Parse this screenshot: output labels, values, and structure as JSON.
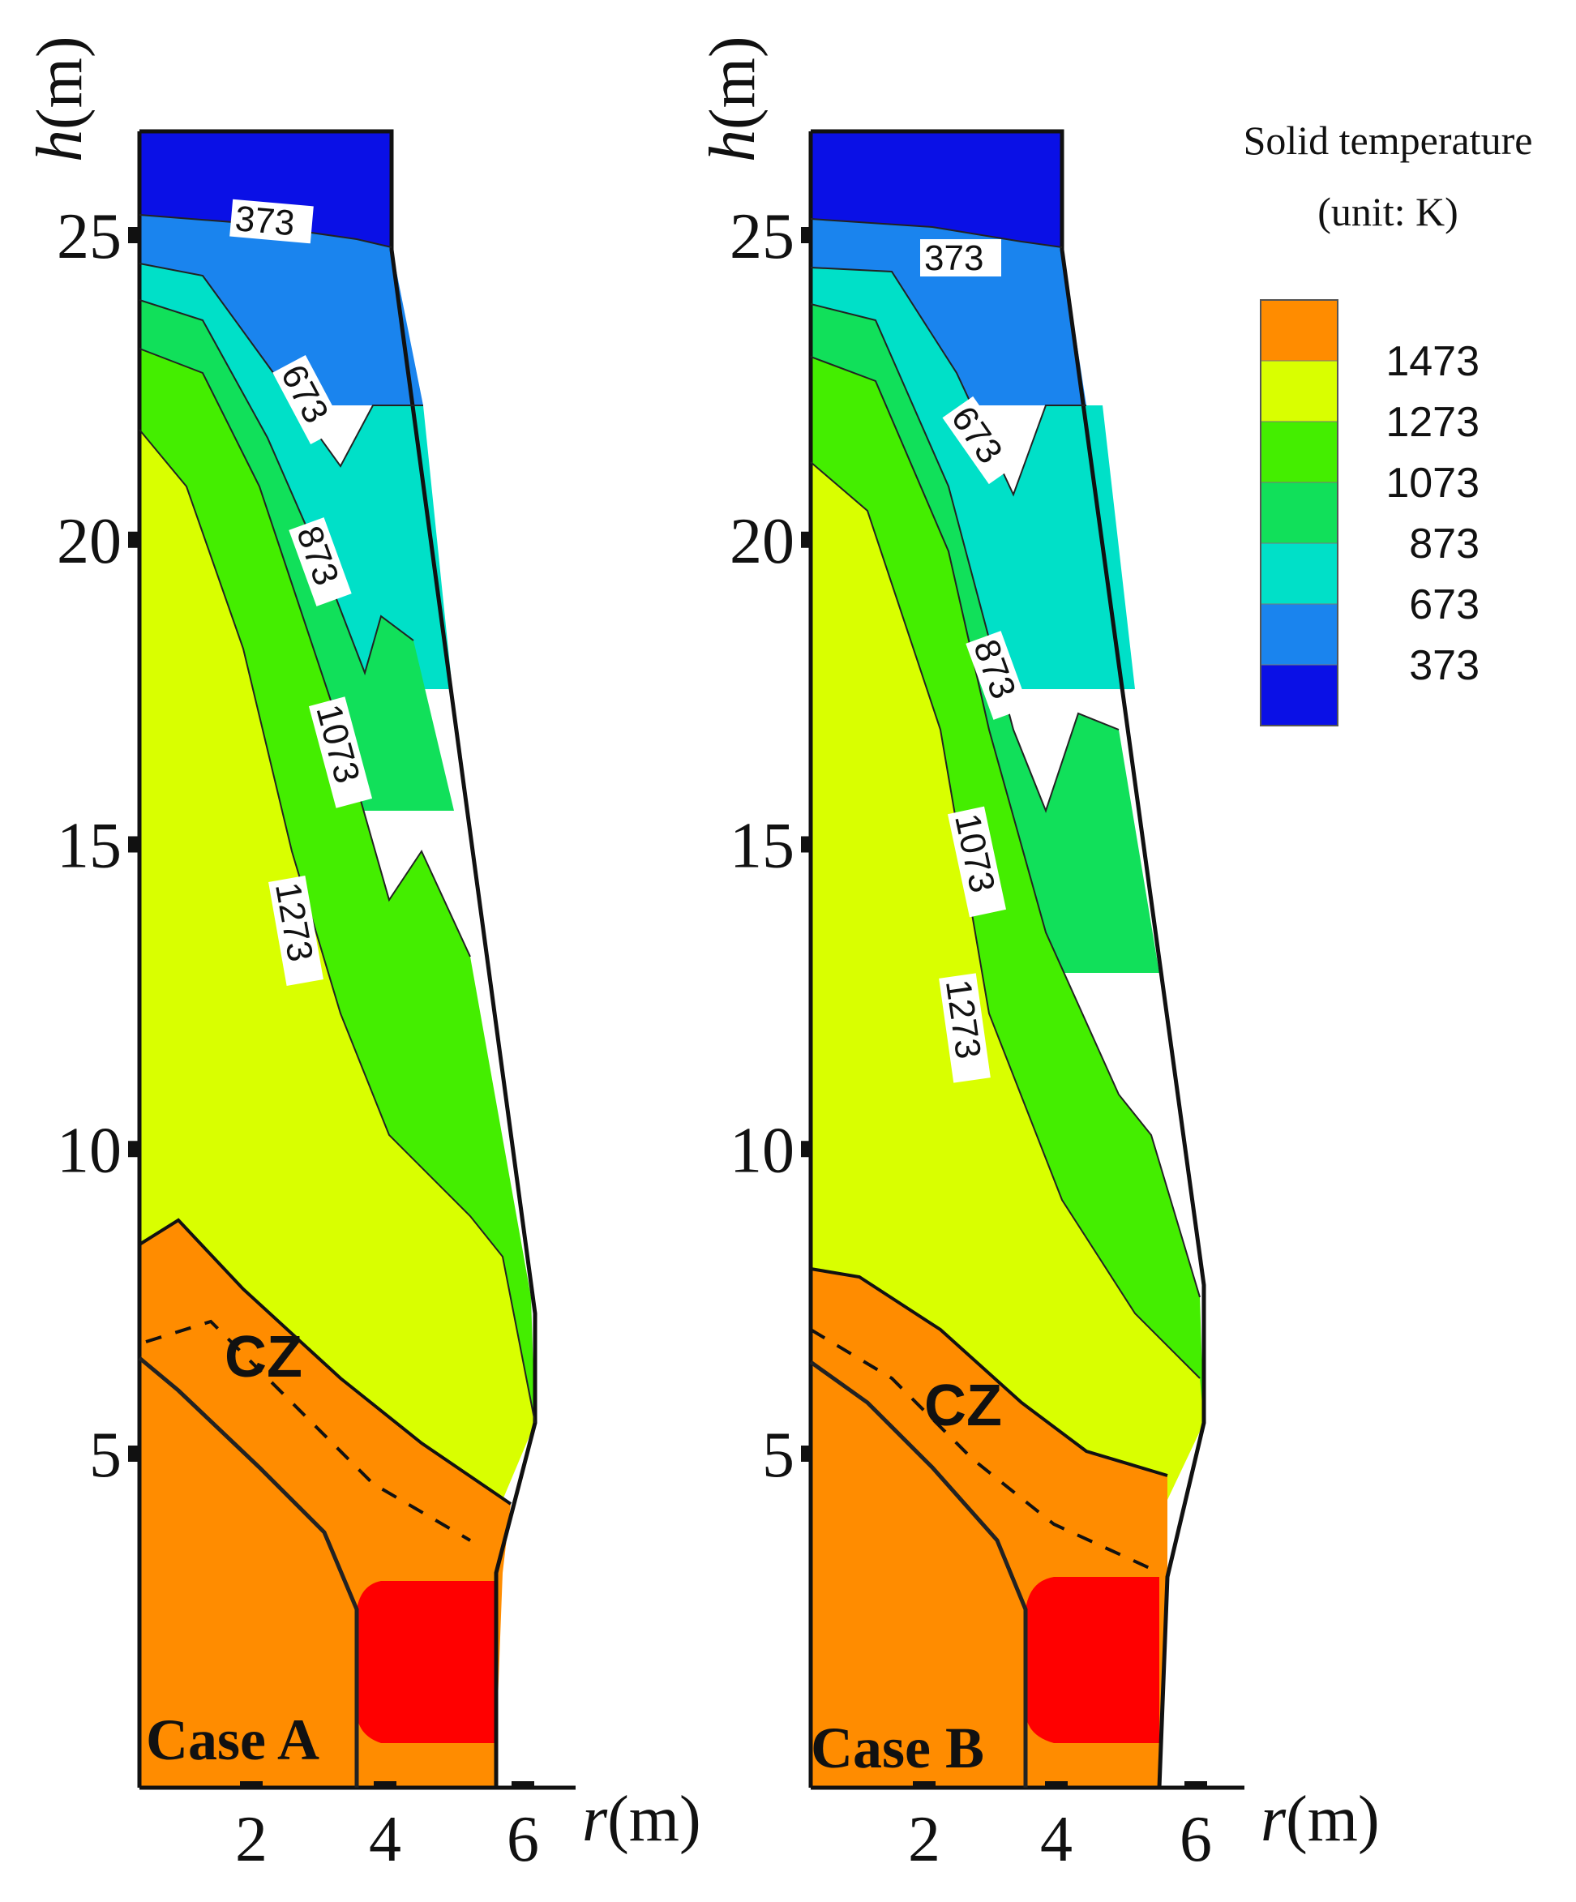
{
  "chart_data": {
    "type": "heatmap",
    "legend": {
      "title": "Solid temperature",
      "unit": "(unit: K)",
      "placement": "top-right",
      "levels": [
        {
          "label": "1473",
          "color": "#ff8c00"
        },
        {
          "label": "1273",
          "color": "#d9ff00"
        },
        {
          "label": "1073",
          "color": "#44ee00"
        },
        {
          "label": "873",
          "color": "#11e05a"
        },
        {
          "label": "673",
          "color": "#00e0c8"
        },
        {
          "label": "373",
          "color": "#1a84ee"
        },
        {
          "label": "",
          "color": "#0a10e6"
        }
      ],
      "core_color": "#ff0000"
    },
    "xlabel_var": "r",
    "xlabel_unit": "(m)",
    "ylabel_var": "h",
    "ylabel_unit": "(m)",
    "x_ticks": [
      "2",
      "4",
      "6"
    ],
    "y_ticks": [
      "5",
      "10",
      "15",
      "20",
      "25"
    ],
    "panels": [
      {
        "case_label": "Case A",
        "zone_label": "CZ",
        "contour_labels": [
          "373",
          "673",
          "873",
          "1073",
          "1273"
        ]
      },
      {
        "case_label": "Case B",
        "zone_label": "CZ",
        "contour_labels": [
          "373",
          "673",
          "873",
          "1073",
          "1273"
        ]
      }
    ]
  }
}
